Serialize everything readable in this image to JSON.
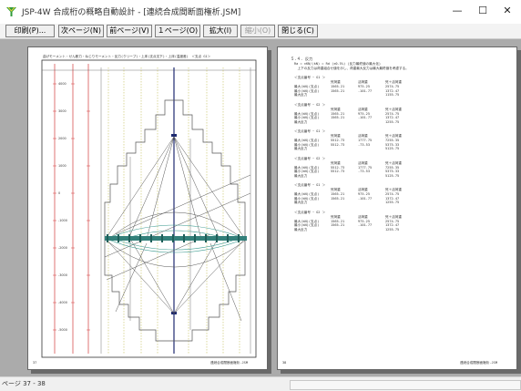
{
  "window": {
    "title": "JSP-4W 合成桁の概略自動設計 - [連続合成間断面権析.JSM]",
    "minimize": "—",
    "maximize": "☐",
    "close": "✕"
  },
  "toolbar": {
    "print": "印刷(P)...",
    "next_page": "次ページ(N)",
    "prev_page": "前ページ(V)",
    "one_page": "１ページ(O)",
    "zoom": "拡大(I)",
    "shrink": "縮小(O)",
    "close": "閉じる(C)"
  },
  "left_page": {
    "header": "曲げモーメント・せん断力・ねじりモーメント・反力(クリープ)・上床(支点沈下)・上床(温度差)　＜支点 G1＞",
    "footer": "連続合成間断面権析.JSM",
    "page_number": "37",
    "scale_labels": [
      "4000",
      "3000",
      "2000",
      "1000",
      "0",
      "-1000",
      "-2000",
      "-3000",
      "-4000",
      "-5000"
    ]
  },
  "right_page": {
    "section_title": "５.４. 反力",
    "intro_line1": "Ra = ±KN/(kN) = Rd (±0.5%) (反力最終値の最大化)",
    "intro_line2": "　上下の反力は荷重組合せ値を示し、荷重最大反力は最大最終値を考慮する。",
    "columns": [
      "死荷重",
      "活荷重",
      "死＋活荷重"
    ],
    "groups": [
      {
        "title": "＜支点番号 ｰ G1 ＞",
        "rows": [
          {
            "label": "最大(kN)(支点)",
            "values": [
              "1565.21",
              "975.25",
              "2574.75"
            ]
          },
          {
            "label": "最小(kN)(支点)",
            "values": [
              "1565.21",
              "-101.77",
              "1372.47"
            ]
          },
          {
            "label": "最大反力",
            "values": [
              "",
              "",
              "1155.75"
            ]
          }
        ]
      },
      {
        "title": "＜支点番号 ｰ G2 ＞",
        "rows": [
          {
            "label": "最大(kN)(支点)",
            "values": [
              "1565.21",
              "975.25",
              "2574.75"
            ]
          },
          {
            "label": "最小(kN)(支点)",
            "values": [
              "1565.21",
              "-101.77",
              "1372.47"
            ]
          },
          {
            "label": "最大反力",
            "values": [
              "",
              "",
              "1255.75"
            ]
          }
        ]
      },
      {
        "title": "＜支点番号 ｰ G1 ＞",
        "rows": [
          {
            "label": "最大(kN)(支点)",
            "values": [
              "5512.73",
              "1777.75",
              "7255.35"
            ]
          },
          {
            "label": "最小(kN)(支点)",
            "values": [
              "5512.73",
              "-73.53",
              "5375.33"
            ]
          },
          {
            "label": "最大反力",
            "values": [
              "",
              "",
              "5125.75"
            ]
          }
        ]
      },
      {
        "title": "＜支点番号 ｰ G2 ＞",
        "rows": [
          {
            "label": "最大(kN)(支点)",
            "values": [
              "5512.73",
              "1777.75",
              "7255.35"
            ]
          },
          {
            "label": "最小(kN)(支点)",
            "values": [
              "5512.73",
              "-73.53",
              "5375.33"
            ]
          },
          {
            "label": "最大反力",
            "values": [
              "",
              "",
              "5125.75"
            ]
          }
        ]
      },
      {
        "title": "＜支点番号 ｰ G1 ＞",
        "rows": [
          {
            "label": "最大(kN)(支点)",
            "values": [
              "1565.21",
              "975.25",
              "2574.75"
            ]
          },
          {
            "label": "最小(kN)(支点)",
            "values": [
              "1565.21",
              "-101.77",
              "1372.47"
            ]
          },
          {
            "label": "最大反力",
            "values": [
              "",
              "",
              "1255.75"
            ]
          }
        ]
      },
      {
        "title": "＜支点番号 ｰ G2 ＞",
        "rows": [
          {
            "label": "最大(kN)(支点)",
            "values": [
              "1565.21",
              "975.25",
              "2574.75"
            ]
          },
          {
            "label": "最小(kN)(支点)",
            "values": [
              "1565.21",
              "-101.77",
              "1372.47"
            ]
          },
          {
            "label": "最大反力",
            "values": [
              "",
              "",
              "1255.75"
            ]
          }
        ]
      }
    ],
    "footer": "連続合成間断面権析.JSM",
    "page_number": "38"
  },
  "status": {
    "text": "ページ 37 - 38"
  },
  "colors": {
    "viewport_bg": "#ababab",
    "shape_bar": "#33807a",
    "envelope": "#555555",
    "red_guides": "#d23a3a",
    "olive_guides": "#b7b13a",
    "teal_curves": "#3c9a8f"
  }
}
